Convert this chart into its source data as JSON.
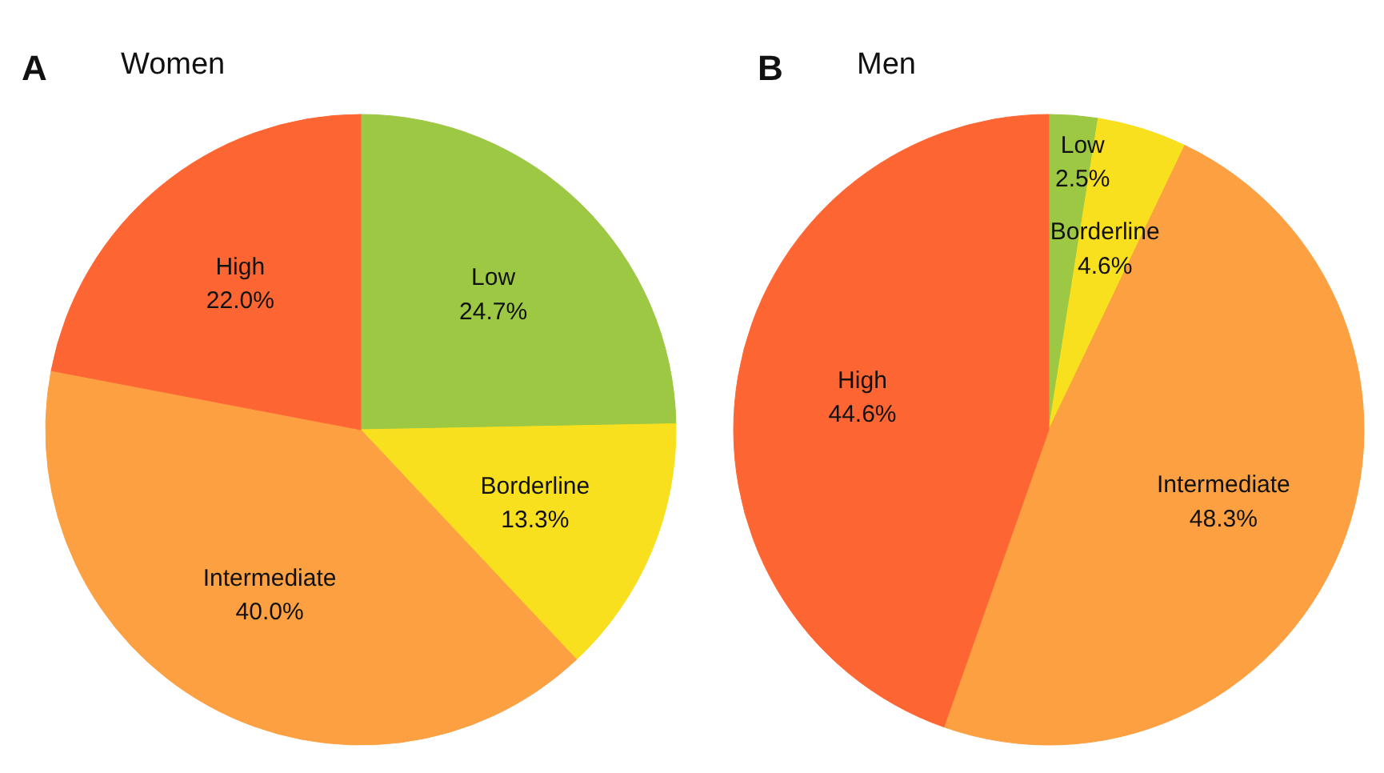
{
  "chart_data": [
    {
      "type": "pie",
      "title": "Women",
      "annotations": [
        "A"
      ],
      "categories": [
        "Low",
        "Borderline",
        "Intermediate",
        "High"
      ],
      "values": [
        24.7,
        13.3,
        40.0,
        22.0
      ],
      "value_labels": [
        "24.7%",
        "13.3%",
        "40.0%",
        "22.0%"
      ],
      "colors": [
        "#9dc843",
        "#f9e01f",
        "#fca042",
        "#fd6633"
      ],
      "legend": false
    },
    {
      "type": "pie",
      "title": "Men",
      "annotations": [
        "B"
      ],
      "categories": [
        "Low",
        "Borderline",
        "Intermediate",
        "High"
      ],
      "values": [
        2.5,
        4.6,
        48.3,
        44.6
      ],
      "value_labels": [
        "2.5%",
        "4.6%",
        "48.3%",
        "44.6%"
      ],
      "colors": [
        "#9dc843",
        "#f9e01f",
        "#fca042",
        "#fd6633"
      ],
      "legend": false
    }
  ]
}
